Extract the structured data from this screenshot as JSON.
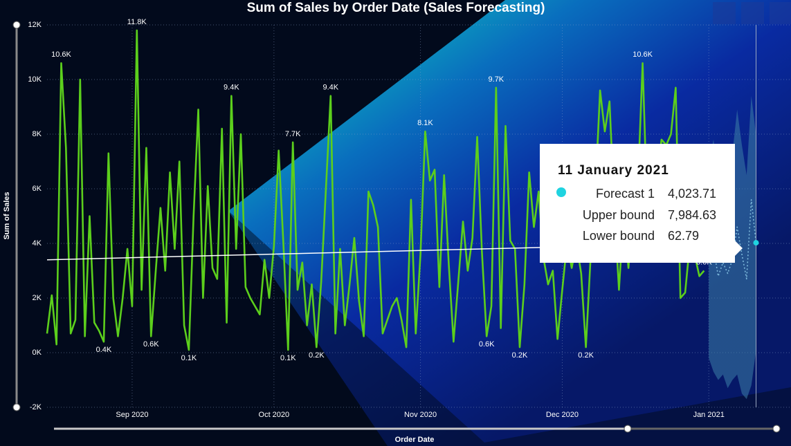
{
  "chart_data": {
    "type": "line",
    "title": "Sum of Sales by Order Date (Sales Forecasting)",
    "x_label": "Order Date",
    "y_label": "Sum of Sales",
    "grid": true,
    "ylim": [
      -2000,
      12000
    ],
    "yticks": [
      {
        "value": -2000,
        "label": "-2K"
      },
      {
        "value": 0,
        "label": "0K"
      },
      {
        "value": 2000,
        "label": "2K"
      },
      {
        "value": 4000,
        "label": "4K"
      },
      {
        "value": 6000,
        "label": "6K"
      },
      {
        "value": 8000,
        "label": "8K"
      },
      {
        "value": 10000,
        "label": "10K"
      },
      {
        "value": 12000,
        "label": "12K"
      }
    ],
    "categories": [
      null,
      null,
      null,
      null,
      null,
      null,
      null,
      null,
      null,
      null,
      null,
      null,
      null,
      null,
      null,
      null,
      null,
      null,
      "Sep 2020",
      null,
      null,
      null,
      null,
      null,
      null,
      null,
      null,
      null,
      null,
      null,
      null,
      null,
      null,
      null,
      null,
      null,
      null,
      null,
      null,
      null,
      null,
      null,
      null,
      null,
      null,
      null,
      null,
      null,
      "Oct 2020",
      null,
      null,
      null,
      null,
      null,
      null,
      null,
      null,
      null,
      null,
      null,
      null,
      null,
      null,
      null,
      null,
      null,
      null,
      null,
      null,
      null,
      null,
      null,
      null,
      null,
      null,
      null,
      null,
      null,
      null,
      "Nov 2020",
      null,
      null,
      null,
      null,
      null,
      null,
      null,
      null,
      null,
      null,
      null,
      null,
      null,
      null,
      null,
      null,
      null,
      null,
      null,
      null,
      null,
      null,
      null,
      null,
      null,
      null,
      null,
      null,
      null,
      "Dec 2020",
      null,
      null,
      null,
      null,
      null,
      null,
      null,
      null,
      null,
      null,
      null,
      null,
      null,
      null,
      null,
      null,
      null,
      null,
      null,
      null,
      null,
      null,
      null,
      null,
      null,
      null,
      null,
      null,
      null,
      null,
      "Jan 2021",
      null,
      null,
      null,
      null,
      null,
      null,
      null,
      null,
      null,
      null
    ],
    "series": [
      {
        "color": "#5ccf1c",
        "values": [
          700,
          2100,
          300,
          10600,
          7500,
          700,
          1200,
          10000,
          600,
          5000,
          1100,
          800,
          400,
          7300,
          2000,
          600,
          2000,
          3800,
          1700,
          11800,
          2300,
          7500,
          600,
          3000,
          5300,
          3000,
          6600,
          3800,
          7000,
          1000,
          100,
          5000,
          8900,
          2000,
          6100,
          3100,
          2700,
          8200,
          1100,
          9400,
          3800,
          8000,
          2400,
          2000,
          1700,
          1400,
          3400,
          2000,
          3900,
          7400,
          4000,
          100,
          7700,
          2300,
          3300,
          1000,
          2500,
          200,
          2600,
          6000,
          9400,
          700,
          3800,
          1000,
          2500,
          4200,
          1900,
          600,
          5900,
          5400,
          4600,
          700,
          1200,
          1700,
          2000,
          1200,
          200,
          5600,
          700,
          3600,
          8100,
          6300,
          6700,
          2400,
          6500,
          3200,
          400,
          2600,
          4800,
          3000,
          4200,
          7900,
          3700,
          600,
          1700,
          9700,
          900,
          8300,
          4100,
          3800,
          200,
          2500,
          6600,
          4600,
          5900,
          3500,
          2500,
          3000,
          500,
          2300,
          4000,
          3100,
          4000,
          2900,
          200,
          3500,
          5900,
          9600,
          8100,
          9200,
          5300,
          2300,
          5200,
          3100,
          5300,
          6100,
          10600,
          5100,
          4800,
          6400,
          7800,
          7600,
          8000,
          9700,
          2000,
          2200,
          4000,
          3600,
          2800,
          3000,
          null,
          null,
          null,
          null,
          null,
          null,
          null,
          null,
          null,
          null,
          null
        ],
        "value_labels": [
          null,
          null,
          null,
          "10.6K",
          null,
          null,
          null,
          null,
          null,
          null,
          null,
          null,
          "0.4K",
          null,
          null,
          null,
          null,
          null,
          null,
          "11.8K",
          null,
          null,
          "0.6K",
          null,
          null,
          null,
          null,
          null,
          null,
          null,
          "0.1K",
          null,
          null,
          null,
          null,
          null,
          null,
          null,
          null,
          "9.4K",
          null,
          null,
          null,
          null,
          null,
          null,
          null,
          null,
          null,
          null,
          null,
          "0.1K",
          "7.7K",
          null,
          null,
          null,
          null,
          "0.2K",
          null,
          null,
          "9.4K",
          null,
          null,
          null,
          null,
          null,
          null,
          null,
          null,
          null,
          null,
          null,
          null,
          null,
          null,
          null,
          null,
          null,
          null,
          null,
          "8.1K",
          null,
          null,
          null,
          null,
          null,
          null,
          null,
          null,
          null,
          null,
          null,
          null,
          "0.6K",
          null,
          "9.7K",
          null,
          null,
          null,
          null,
          "0.2K",
          null,
          null,
          null,
          null,
          null,
          null,
          null,
          null,
          null,
          null,
          null,
          null,
          null,
          "0.2K",
          null,
          null,
          null,
          null,
          null,
          null,
          null,
          null,
          null,
          null,
          null,
          "10.6K",
          null,
          null,
          null,
          null,
          null,
          null,
          null,
          null,
          null,
          null,
          null,
          null,
          "3.0K",
          null,
          null,
          null,
          null,
          null,
          null,
          null,
          null,
          null,
          null,
          null
        ]
      },
      {
        "name": "Forecast 1",
        "color": "#7db9dc",
        "values": [
          null,
          null,
          null,
          null,
          null,
          null,
          null,
          null,
          null,
          null,
          null,
          null,
          null,
          null,
          null,
          null,
          null,
          null,
          null,
          null,
          null,
          null,
          null,
          null,
          null,
          null,
          null,
          null,
          null,
          null,
          null,
          null,
          null,
          null,
          null,
          null,
          null,
          null,
          null,
          null,
          null,
          null,
          null,
          null,
          null,
          null,
          null,
          null,
          null,
          null,
          null,
          null,
          null,
          null,
          null,
          null,
          null,
          null,
          null,
          null,
          null,
          null,
          null,
          null,
          null,
          null,
          null,
          null,
          null,
          null,
          null,
          null,
          null,
          null,
          null,
          null,
          null,
          null,
          null,
          null,
          null,
          null,
          null,
          null,
          null,
          null,
          null,
          null,
          null,
          null,
          null,
          null,
          null,
          null,
          null,
          null,
          null,
          null,
          null,
          null,
          null,
          null,
          null,
          null,
          null,
          null,
          null,
          null,
          null,
          null,
          null,
          null,
          null,
          null,
          null,
          null,
          null,
          null,
          null,
          null,
          null,
          null,
          null,
          null,
          null,
          null,
          null,
          null,
          null,
          null,
          null,
          null,
          null,
          null,
          null,
          null,
          null,
          null,
          null,
          null,
          3500,
          3800,
          2800,
          3300,
          2900,
          3400,
          4600,
          3600,
          2700,
          5600,
          4023.71
        ]
      }
    ],
    "forecast_band": {
      "color": "#3d7fa8",
      "upper": [
        7000,
        7800,
        6500,
        7400,
        6800,
        7300,
        8900,
        7600,
        6500,
        9400,
        7984.63
      ],
      "lower": [
        -200,
        -700,
        -1000,
        -800,
        -1300,
        -1000,
        -800,
        -1500,
        -1700,
        -1200,
        62.79
      ]
    },
    "trend_line": {
      "color": "#ffffff",
      "start": 3400,
      "end": 4000
    },
    "tooltip": {
      "title": "11 January 2021",
      "marker_color": "#1fd3e0",
      "rows": [
        {
          "label": "Forecast 1",
          "value": "4,023.71"
        },
        {
          "label": "Upper bound",
          "value": "7,984.63"
        },
        {
          "label": "Lower bound",
          "value": "62.79"
        }
      ]
    }
  }
}
